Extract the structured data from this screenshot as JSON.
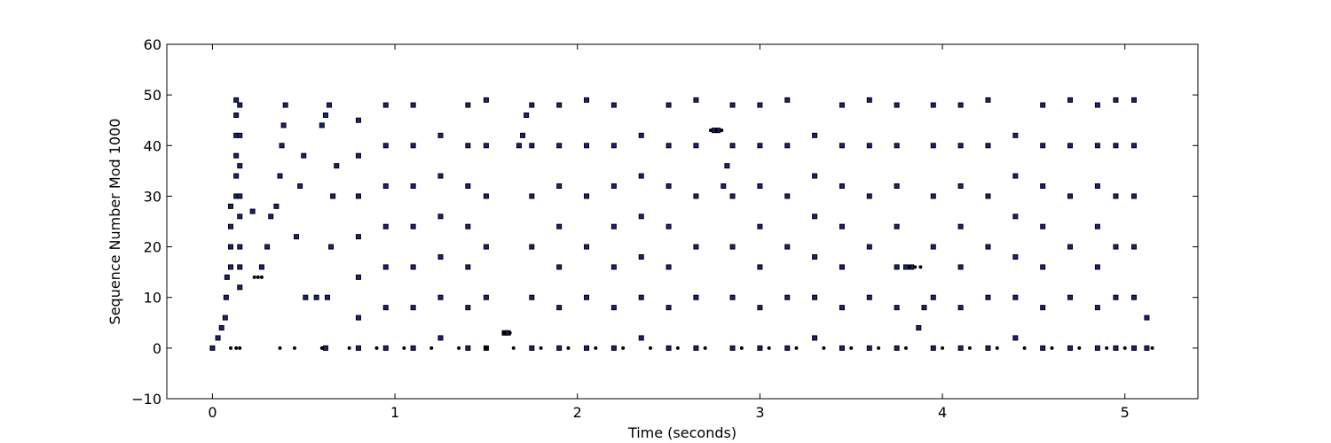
{
  "chart_data": {
    "type": "scatter",
    "title": "",
    "xlabel": "Time (seconds)",
    "ylabel": "Sequence Number Mod 1000",
    "xlim": [
      -0.25,
      5.4
    ],
    "ylim": [
      -10,
      60
    ],
    "x_ticks": [
      0,
      1,
      2,
      3,
      4,
      5
    ],
    "y_ticks": [
      -10,
      0,
      10,
      20,
      30,
      40,
      50,
      60
    ],
    "grid": false,
    "legend": "none",
    "colors": {
      "ack": "#000000",
      "packet_fill": "#1a237e",
      "packet_edge": "#000000"
    },
    "series": [
      {
        "kind": "sent-packets",
        "points": [
          [
            0.0,
            0
          ],
          [
            0.03,
            2
          ],
          [
            0.05,
            4
          ],
          [
            0.07,
            6
          ],
          [
            0.075,
            10
          ],
          [
            0.08,
            14
          ],
          [
            0.1,
            16
          ],
          [
            0.1,
            20
          ],
          [
            0.1,
            24
          ],
          [
            0.1,
            28
          ],
          [
            0.13,
            30
          ],
          [
            0.13,
            34
          ],
          [
            0.13,
            38
          ],
          [
            0.13,
            42
          ],
          [
            0.13,
            46
          ],
          [
            0.13,
            49
          ],
          [
            0.15,
            12
          ],
          [
            0.15,
            16
          ],
          [
            0.15,
            20
          ],
          [
            0.15,
            26
          ],
          [
            0.15,
            30
          ],
          [
            0.15,
            36
          ],
          [
            0.15,
            42
          ],
          [
            0.15,
            48
          ],
          [
            0.22,
            27
          ],
          [
            0.27,
            16
          ],
          [
            0.3,
            20
          ],
          [
            0.32,
            26
          ],
          [
            0.35,
            28
          ],
          [
            0.37,
            34
          ],
          [
            0.38,
            40
          ],
          [
            0.39,
            44
          ],
          [
            0.4,
            48
          ],
          [
            0.46,
            22
          ],
          [
            0.48,
            32
          ],
          [
            0.5,
            38
          ],
          [
            0.51,
            10
          ],
          [
            0.57,
            10
          ],
          [
            0.6,
            44
          ],
          [
            0.62,
            46
          ],
          [
            0.64,
            48
          ],
          [
            0.62,
            0
          ],
          [
            0.63,
            10
          ],
          [
            0.65,
            20
          ],
          [
            0.66,
            30
          ],
          [
            0.68,
            36
          ],
          [
            0.8,
            0
          ],
          [
            0.8,
            6
          ],
          [
            0.8,
            14
          ],
          [
            0.8,
            22
          ],
          [
            0.8,
            30
          ],
          [
            0.8,
            38
          ],
          [
            0.8,
            45
          ],
          [
            0.95,
            0
          ],
          [
            0.95,
            8
          ],
          [
            0.95,
            16
          ],
          [
            0.95,
            24
          ],
          [
            0.95,
            32
          ],
          [
            0.95,
            40
          ],
          [
            0.95,
            48
          ],
          [
            1.1,
            0
          ],
          [
            1.1,
            8
          ],
          [
            1.1,
            16
          ],
          [
            1.1,
            24
          ],
          [
            1.1,
            32
          ],
          [
            1.1,
            40
          ],
          [
            1.1,
            48
          ],
          [
            1.25,
            2
          ],
          [
            1.25,
            10
          ],
          [
            1.25,
            18
          ],
          [
            1.25,
            26
          ],
          [
            1.25,
            34
          ],
          [
            1.25,
            42
          ],
          [
            1.4,
            0
          ],
          [
            1.4,
            8
          ],
          [
            1.4,
            16
          ],
          [
            1.4,
            24
          ],
          [
            1.4,
            32
          ],
          [
            1.4,
            40
          ],
          [
            1.4,
            48
          ],
          [
            1.5,
            0
          ],
          [
            1.5,
            10
          ],
          [
            1.5,
            20
          ],
          [
            1.5,
            30
          ],
          [
            1.5,
            40
          ],
          [
            1.5,
            49
          ],
          [
            1.6,
            3
          ],
          [
            1.62,
            3
          ],
          [
            1.68,
            40
          ],
          [
            1.7,
            42
          ],
          [
            1.72,
            46
          ],
          [
            1.75,
            0
          ],
          [
            1.75,
            10
          ],
          [
            1.75,
            20
          ],
          [
            1.75,
            30
          ],
          [
            1.75,
            40
          ],
          [
            1.75,
            48
          ],
          [
            1.9,
            0
          ],
          [
            1.9,
            8
          ],
          [
            1.9,
            16
          ],
          [
            1.9,
            24
          ],
          [
            1.9,
            32
          ],
          [
            1.9,
            40
          ],
          [
            1.9,
            48
          ],
          [
            2.05,
            0
          ],
          [
            2.05,
            10
          ],
          [
            2.05,
            20
          ],
          [
            2.05,
            30
          ],
          [
            2.05,
            40
          ],
          [
            2.05,
            49
          ],
          [
            2.2,
            0
          ],
          [
            2.2,
            8
          ],
          [
            2.2,
            16
          ],
          [
            2.2,
            24
          ],
          [
            2.2,
            32
          ],
          [
            2.2,
            40
          ],
          [
            2.2,
            48
          ],
          [
            2.35,
            2
          ],
          [
            2.35,
            10
          ],
          [
            2.35,
            18
          ],
          [
            2.35,
            26
          ],
          [
            2.35,
            34
          ],
          [
            2.35,
            42
          ],
          [
            2.5,
            0
          ],
          [
            2.5,
            8
          ],
          [
            2.5,
            16
          ],
          [
            2.5,
            24
          ],
          [
            2.5,
            32
          ],
          [
            2.5,
            40
          ],
          [
            2.5,
            48
          ],
          [
            2.65,
            0
          ],
          [
            2.65,
            10
          ],
          [
            2.65,
            20
          ],
          [
            2.65,
            30
          ],
          [
            2.65,
            40
          ],
          [
            2.65,
            49
          ],
          [
            2.75,
            43
          ],
          [
            2.77,
            43
          ],
          [
            2.8,
            32
          ],
          [
            2.82,
            36
          ],
          [
            2.85,
            0
          ],
          [
            2.85,
            10
          ],
          [
            2.85,
            20
          ],
          [
            2.85,
            30
          ],
          [
            2.85,
            40
          ],
          [
            2.85,
            48
          ],
          [
            3.0,
            0
          ],
          [
            3.0,
            8
          ],
          [
            3.0,
            16
          ],
          [
            3.0,
            24
          ],
          [
            3.0,
            32
          ],
          [
            3.0,
            40
          ],
          [
            3.0,
            48
          ],
          [
            3.15,
            0
          ],
          [
            3.15,
            10
          ],
          [
            3.15,
            20
          ],
          [
            3.15,
            30
          ],
          [
            3.15,
            40
          ],
          [
            3.15,
            49
          ],
          [
            3.3,
            2
          ],
          [
            3.3,
            10
          ],
          [
            3.3,
            18
          ],
          [
            3.3,
            26
          ],
          [
            3.3,
            34
          ],
          [
            3.3,
            42
          ],
          [
            3.45,
            0
          ],
          [
            3.45,
            8
          ],
          [
            3.45,
            16
          ],
          [
            3.45,
            24
          ],
          [
            3.45,
            32
          ],
          [
            3.45,
            40
          ],
          [
            3.45,
            48
          ],
          [
            3.6,
            0
          ],
          [
            3.6,
            10
          ],
          [
            3.6,
            20
          ],
          [
            3.6,
            30
          ],
          [
            3.6,
            40
          ],
          [
            3.6,
            49
          ],
          [
            3.75,
            0
          ],
          [
            3.75,
            8
          ],
          [
            3.75,
            16
          ],
          [
            3.75,
            24
          ],
          [
            3.75,
            32
          ],
          [
            3.75,
            40
          ],
          [
            3.75,
            48
          ],
          [
            3.8,
            16
          ],
          [
            3.83,
            16
          ],
          [
            3.87,
            4
          ],
          [
            3.9,
            8
          ],
          [
            3.95,
            0
          ],
          [
            3.95,
            10
          ],
          [
            3.95,
            20
          ],
          [
            3.95,
            30
          ],
          [
            3.95,
            40
          ],
          [
            3.95,
            48
          ],
          [
            4.1,
            0
          ],
          [
            4.1,
            8
          ],
          [
            4.1,
            16
          ],
          [
            4.1,
            24
          ],
          [
            4.1,
            32
          ],
          [
            4.1,
            40
          ],
          [
            4.1,
            48
          ],
          [
            4.25,
            0
          ],
          [
            4.25,
            10
          ],
          [
            4.25,
            20
          ],
          [
            4.25,
            30
          ],
          [
            4.25,
            40
          ],
          [
            4.25,
            49
          ],
          [
            4.4,
            2
          ],
          [
            4.4,
            10
          ],
          [
            4.4,
            18
          ],
          [
            4.4,
            26
          ],
          [
            4.4,
            34
          ],
          [
            4.4,
            42
          ],
          [
            4.55,
            0
          ],
          [
            4.55,
            8
          ],
          [
            4.55,
            16
          ],
          [
            4.55,
            24
          ],
          [
            4.55,
            32
          ],
          [
            4.55,
            40
          ],
          [
            4.55,
            48
          ],
          [
            4.7,
            0
          ],
          [
            4.7,
            10
          ],
          [
            4.7,
            20
          ],
          [
            4.7,
            30
          ],
          [
            4.7,
            40
          ],
          [
            4.7,
            49
          ],
          [
            4.85,
            0
          ],
          [
            4.85,
            8
          ],
          [
            4.85,
            16
          ],
          [
            4.85,
            24
          ],
          [
            4.85,
            32
          ],
          [
            4.85,
            40
          ],
          [
            4.85,
            48
          ],
          [
            4.95,
            0
          ],
          [
            4.95,
            10
          ],
          [
            4.95,
            20
          ],
          [
            4.95,
            30
          ],
          [
            4.95,
            40
          ],
          [
            4.95,
            49
          ],
          [
            5.05,
            0
          ],
          [
            5.05,
            10
          ],
          [
            5.05,
            20
          ],
          [
            5.05,
            30
          ],
          [
            5.05,
            40
          ],
          [
            5.05,
            49
          ],
          [
            5.12,
            0
          ],
          [
            5.12,
            6
          ]
        ]
      },
      {
        "kind": "acks",
        "points": [
          [
            0.1,
            0
          ],
          [
            0.13,
            0
          ],
          [
            0.15,
            0
          ],
          [
            0.37,
            0
          ],
          [
            0.45,
            0
          ],
          [
            0.6,
            0
          ],
          [
            0.75,
            0
          ],
          [
            0.9,
            0
          ],
          [
            1.05,
            0
          ],
          [
            1.2,
            0
          ],
          [
            1.35,
            0
          ],
          [
            1.5,
            0
          ],
          [
            1.65,
            0
          ],
          [
            1.8,
            0
          ],
          [
            1.95,
            0
          ],
          [
            2.1,
            0
          ],
          [
            2.25,
            0
          ],
          [
            2.4,
            0
          ],
          [
            2.55,
            0
          ],
          [
            2.7,
            0
          ],
          [
            2.9,
            0
          ],
          [
            3.05,
            0
          ],
          [
            3.2,
            0
          ],
          [
            3.35,
            0
          ],
          [
            3.5,
            0
          ],
          [
            3.65,
            0
          ],
          [
            3.8,
            0
          ],
          [
            4.0,
            0
          ],
          [
            4.15,
            0
          ],
          [
            4.3,
            0
          ],
          [
            4.45,
            0
          ],
          [
            4.6,
            0
          ],
          [
            4.75,
            0
          ],
          [
            4.9,
            0
          ],
          [
            5.0,
            0
          ],
          [
            5.15,
            0
          ],
          [
            0.23,
            14
          ],
          [
            0.25,
            14
          ],
          [
            0.27,
            14
          ],
          [
            1.6,
            3
          ],
          [
            1.63,
            3
          ],
          [
            2.73,
            43
          ],
          [
            2.76,
            43
          ],
          [
            2.79,
            43
          ],
          [
            3.82,
            16
          ],
          [
            3.85,
            16
          ],
          [
            3.88,
            16
          ]
        ]
      }
    ]
  }
}
